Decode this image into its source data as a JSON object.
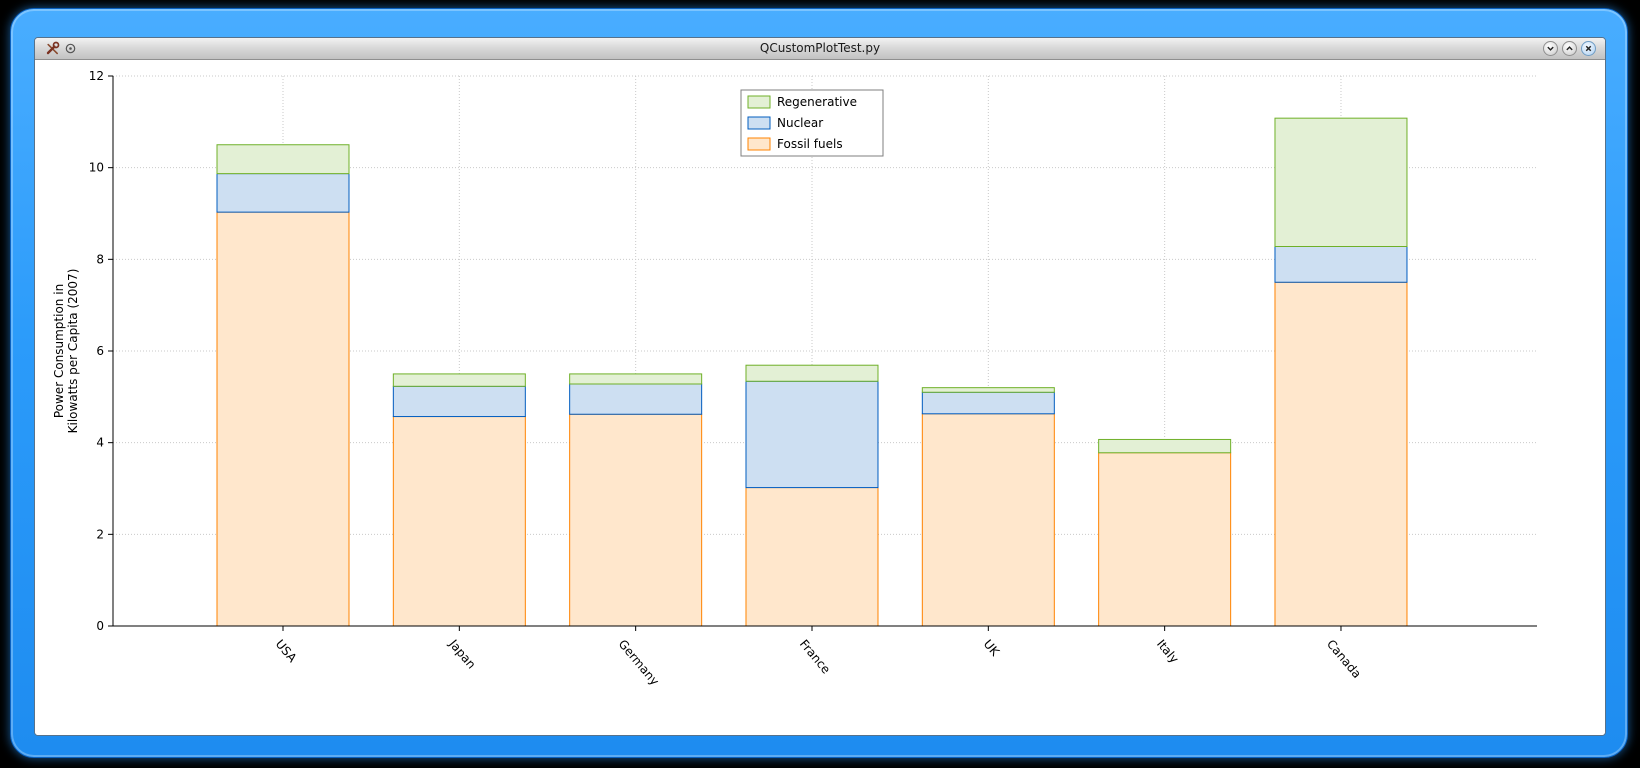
{
  "window": {
    "title": "QCustomPlotTest.py",
    "controls": [
      {
        "name": "shade-button",
        "icon": "chevron-down-icon"
      },
      {
        "name": "maximize-button",
        "icon": "chevron-up-icon"
      },
      {
        "name": "close-button",
        "icon": "close-icon"
      }
    ]
  },
  "colors": {
    "frame_accent": "#2b9bfa",
    "grid": "#c9c9c9",
    "axis": "#000000"
  },
  "chart_data": {
    "type": "bar",
    "stacked": true,
    "title": "",
    "xlabel": "",
    "ylabel_lines": [
      "Power Consumption in",
      "Kilowatts per Capita (2007)"
    ],
    "categories": [
      "USA",
      "Japan",
      "Germany",
      "France",
      "UK",
      "Italy",
      "Canada"
    ],
    "series": [
      {
        "name": "Fossil fuels",
        "fill": "#ffe7cc",
        "stroke": "#ff8300",
        "values": [
          9.03,
          4.57,
          4.62,
          3.02,
          4.63,
          3.78,
          7.5
        ]
      },
      {
        "name": "Nuclear",
        "fill": "#cddff2",
        "stroke": "#015cbf",
        "values": [
          0.84,
          0.66,
          0.66,
          2.32,
          0.47,
          0,
          0.78
        ]
      },
      {
        "name": "Regenerative",
        "fill": "#e3f0d5",
        "stroke": "#6fb028",
        "values": [
          0.63,
          0.27,
          0.22,
          0.35,
          0.1,
          0.29,
          2.8
        ]
      }
    ],
    "legend": {
      "position": "top-center",
      "items": [
        "Regenerative",
        "Nuclear",
        "Fossil fuels"
      ]
    },
    "yticks": [
      0,
      2,
      4,
      6,
      8,
      10,
      12
    ],
    "ylim": [
      0,
      12
    ],
    "grid": "dotted"
  }
}
